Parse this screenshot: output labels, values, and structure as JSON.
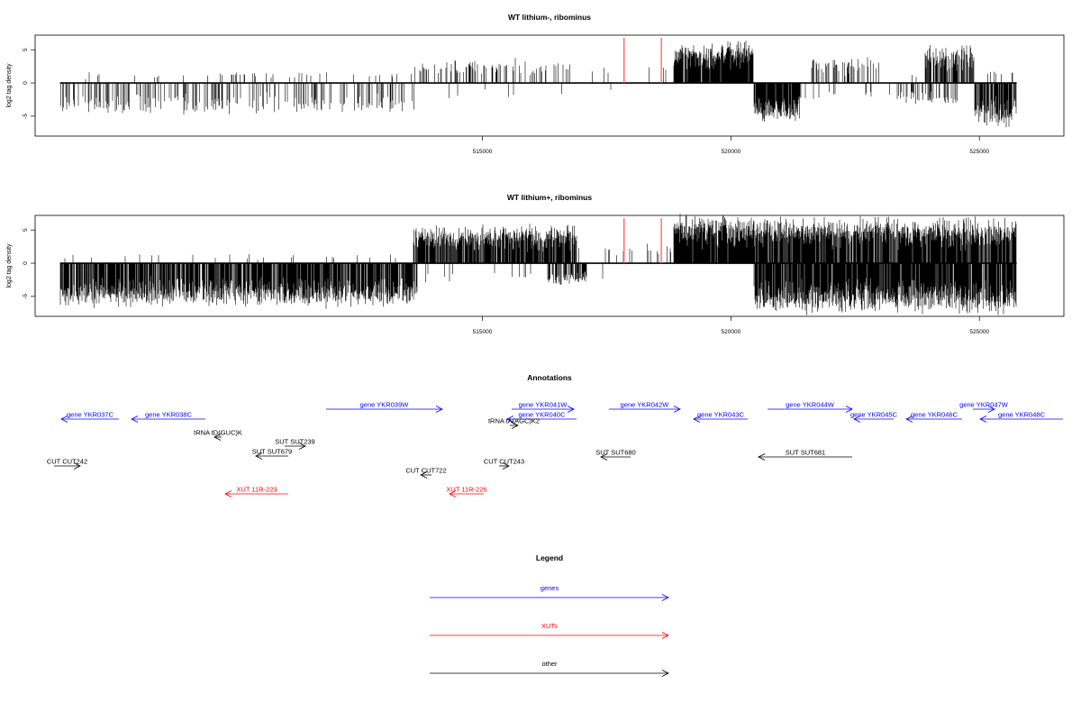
{
  "colors": {
    "gene": "#0000ff",
    "xut": "#ff0000",
    "other": "#000000",
    "marker": "#ff6666"
  },
  "chart_data": [
    {
      "type": "bar",
      "title": "WT lithium-, ribominus",
      "ylabel": "log2 tag density",
      "xlim": [
        506000,
        526700
      ],
      "ylim": [
        -8,
        7.2
      ],
      "xticks": [
        515000,
        520000,
        525000
      ],
      "xtick_labels": [
        "515000",
        "520000",
        "525000"
      ],
      "yticks": [
        -5,
        0,
        5
      ],
      "ytick_labels": [
        "-5",
        "0",
        "5"
      ],
      "markers_x": [
        517850,
        518600
      ],
      "series": [
        {
          "strand": "plus",
          "segments": [
            {
              "from": 507000,
              "to": 513600,
              "density": 0.06,
              "max": 1.8
            },
            {
              "from": 513600,
              "to": 516800,
              "density": 0.22,
              "max": 3.8
            },
            {
              "from": 516800,
              "to": 518800,
              "density": 0.03,
              "max": 3.2
            },
            {
              "from": 518850,
              "to": 520450,
              "density": 0.95,
              "max": 6.6
            },
            {
              "from": 520450,
              "to": 521600,
              "density": 0.0,
              "max": 0.3
            },
            {
              "from": 521600,
              "to": 523000,
              "density": 0.28,
              "max": 4.0
            },
            {
              "from": 523000,
              "to": 523900,
              "density": 0.02,
              "max": 1.5
            },
            {
              "from": 523900,
              "to": 524900,
              "density": 0.6,
              "max": 6.0
            },
            {
              "from": 524900,
              "to": 525750,
              "density": 0.05,
              "max": 2.0
            }
          ]
        },
        {
          "strand": "minus",
          "segments": [
            {
              "from": 506500,
              "to": 513700,
              "density": 0.22,
              "max": 5.0
            },
            {
              "from": 513700,
              "to": 516900,
              "density": 0.02,
              "max": 3.0
            },
            {
              "from": 516900,
              "to": 517700,
              "density": 0.05,
              "max": 2.0
            },
            {
              "from": 520450,
              "to": 521400,
              "density": 0.92,
              "max": 6.2
            },
            {
              "from": 521400,
              "to": 523300,
              "density": 0.06,
              "max": 3.0
            },
            {
              "from": 523300,
              "to": 524600,
              "density": 0.3,
              "max": 3.5
            },
            {
              "from": 524900,
              "to": 525750,
              "density": 0.85,
              "max": 7.4
            }
          ]
        }
      ]
    },
    {
      "type": "bar",
      "title": "WT lithium+, ribominus",
      "ylabel": "log2 tag density",
      "xlim": [
        506000,
        526700
      ],
      "ylim": [
        -8,
        7.2
      ],
      "xticks": [
        515000,
        520000,
        525000
      ],
      "xtick_labels": [
        "515000",
        "520000",
        "525000"
      ],
      "yticks": [
        -5,
        0,
        5
      ],
      "ytick_labels": [
        "-5",
        "0",
        "5"
      ],
      "markers_x": [
        517850,
        518600
      ],
      "series": [
        {
          "strand": "plus",
          "segments": [
            {
              "from": 506500,
              "to": 513600,
              "density": 0.03,
              "max": 1.5
            },
            {
              "from": 513600,
              "to": 516900,
              "density": 0.85,
              "max": 6.0
            },
            {
              "from": 516900,
              "to": 518800,
              "density": 0.04,
              "max": 3.0
            },
            {
              "from": 518850,
              "to": 520500,
              "density": 0.97,
              "max": 7.6
            },
            {
              "from": 520500,
              "to": 525750,
              "density": 0.88,
              "max": 7.2
            }
          ]
        },
        {
          "strand": "minus",
          "segments": [
            {
              "from": 506500,
              "to": 513700,
              "density": 0.8,
              "max": 7.0
            },
            {
              "from": 513700,
              "to": 516300,
              "density": 0.04,
              "max": 3.0
            },
            {
              "from": 516300,
              "to": 517100,
              "density": 0.6,
              "max": 3.5
            },
            {
              "from": 517100,
              "to": 517800,
              "density": 0.05,
              "max": 3.2
            },
            {
              "from": 520450,
              "to": 525750,
              "density": 0.9,
              "max": 8.0
            }
          ]
        }
      ]
    },
    {
      "type": "table",
      "title": "Annotations",
      "features": [
        {
          "label": "gene YKR037C",
          "kind": "gene",
          "dir": "left",
          "x1": 68,
          "x2": 132,
          "row": "g1"
        },
        {
          "label": "gene YKR038C",
          "kind": "gene",
          "dir": "left",
          "x1": 146,
          "x2": 228,
          "row": "g1"
        },
        {
          "label": "gene YKR039W",
          "kind": "gene",
          "dir": "right",
          "x1": 362,
          "x2": 491,
          "row": "g0"
        },
        {
          "label": "gene YKR040C",
          "kind": "gene",
          "dir": "left",
          "x1": 563,
          "x2": 640,
          "row": "g1"
        },
        {
          "label": "gene YKR041W",
          "kind": "gene",
          "dir": "right",
          "x1": 568,
          "x2": 637,
          "row": "g0"
        },
        {
          "label": "gene YKR042W",
          "kind": "gene",
          "dir": "right",
          "x1": 676,
          "x2": 755,
          "row": "g0"
        },
        {
          "label": "gene YKR043C",
          "kind": "gene",
          "dir": "left",
          "x1": 770,
          "x2": 830,
          "row": "g1"
        },
        {
          "label": "gene YKR044W",
          "kind": "gene",
          "dir": "right",
          "x1": 852,
          "x2": 946,
          "row": "g0"
        },
        {
          "label": "gene YKR045C",
          "kind": "gene",
          "dir": "left",
          "x1": 948,
          "x2": 992,
          "row": "g1"
        },
        {
          "label": "gene YKR046C",
          "kind": "gene",
          "dir": "left",
          "x1": 1006,
          "x2": 1068,
          "row": "g1"
        },
        {
          "label": "gene YKR047W",
          "kind": "gene",
          "dir": "right",
          "x1": 1080,
          "x2": 1104,
          "row": "g0"
        },
        {
          "label": "gene YKR048C",
          "kind": "gene",
          "dir": "left",
          "x1": 1088,
          "x2": 1180,
          "row": "g1"
        },
        {
          "label": "tRNA tD(GUC)K",
          "kind": "other",
          "dir": "left",
          "x1": 238,
          "x2": 246,
          "row": "o0"
        },
        {
          "label": "tRNA tA(AGC)K2",
          "kind": "other",
          "dir": "right",
          "x1": 566,
          "x2": 575,
          "row": "o1"
        },
        {
          "label": "SUT SUT239",
          "kind": "other",
          "dir": "right",
          "x1": 316,
          "x2": 339,
          "row": "o2"
        },
        {
          "label": "SUT SUT679",
          "kind": "other",
          "dir": "left",
          "x1": 284,
          "x2": 320,
          "row": "o3"
        },
        {
          "label": "SUT SUT680",
          "kind": "other",
          "dir": "left",
          "x1": 667,
          "x2": 700,
          "row": "o4"
        },
        {
          "label": "SUT SUT681",
          "kind": "other",
          "dir": "left",
          "x1": 842,
          "x2": 946,
          "row": "o4"
        },
        {
          "label": "CUT CUT242",
          "kind": "other",
          "dir": "right",
          "x1": 60,
          "x2": 89,
          "row": "o5"
        },
        {
          "label": "CUT CUT243",
          "kind": "other",
          "dir": "right",
          "x1": 554,
          "x2": 565,
          "row": "o5"
        },
        {
          "label": "CUT CUT722",
          "kind": "other",
          "dir": "left",
          "x1": 467,
          "x2": 479,
          "row": "o6"
        },
        {
          "label": "XUT 11R-223",
          "kind": "xut",
          "dir": "left",
          "x1": 250,
          "x2": 320,
          "row": "x0"
        },
        {
          "label": "XUT 11R-226",
          "kind": "xut",
          "dir": "left",
          "x1": 499,
          "x2": 537,
          "row": "x0"
        }
      ]
    },
    {
      "type": "table",
      "title": "Legend",
      "items": [
        {
          "label": "genes",
          "kind": "gene"
        },
        {
          "label": "XUTs",
          "kind": "xut"
        },
        {
          "label": "other",
          "kind": "other"
        }
      ]
    }
  ]
}
